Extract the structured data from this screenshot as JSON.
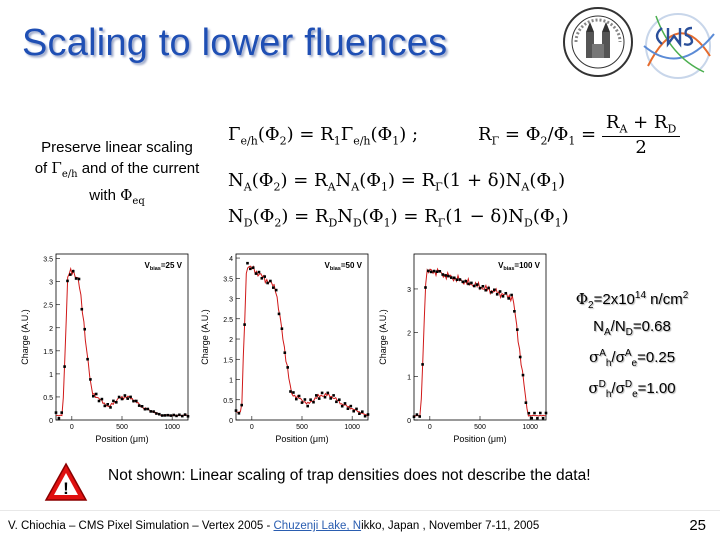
{
  "slide": {
    "title": "Scaling to lower fluences",
    "left_text": {
      "line1": "Preserve linear scaling",
      "line2_pre": "of ",
      "line2_sym": "Γ",
      "line2_sub": "e/h",
      "line2_post": " and of the current",
      "line3_pre": "with ",
      "line3_sym": "Φ",
      "line3_sub": "eq"
    },
    "equations": {
      "eq1_lhs": "Γ",
      "eq1_lhs_sub": "e/h",
      "eq1_arg": "(Φ",
      "eq1_arg_sub": "2",
      "eq1_rhs": ") = R",
      "eq1_r_sub": "1",
      "eq1_rhs2": "Γ",
      "eq1_rhs2_sub": "e/h",
      "eq1_rhs3": "(Φ",
      "eq1_rhs3_sub": "1",
      "eq1_end": ") ;",
      "eq2_lhs": "R",
      "eq2_lhs_sub": "Γ",
      "eq2_mid": " = Φ",
      "eq2_mid_sub": "2",
      "eq2_div": "/Φ",
      "eq2_div_sub": "1",
      "eq2_eq": " =",
      "eq2_num": "R",
      "eq2_num_sub_a": "A",
      "eq2_num_plus": " + R",
      "eq2_num_sub_d": "D",
      "eq2_den": "2",
      "eq3": "N",
      "eq3_sub": "A",
      "eq3_arg": "(Φ",
      "eq3_arg_sub": "2",
      "eq3_rhs": ") = R",
      "eq3_r_sub": "A",
      "eq3_rhs2": "N",
      "eq3_rhs2_sub": "A",
      "eq3_rhs3": "(Φ",
      "eq3_rhs3_sub": "1",
      "eq3_rhs4": ") = R",
      "eq3_rhs4_sub": "Γ",
      "eq3_rhs5": "(1 + δ)N",
      "eq3_rhs5_sub": "A",
      "eq3_rhs6": "(Φ",
      "eq3_rhs6_sub": "1",
      "eq3_end": ")",
      "eq4": "N",
      "eq4_sub": "D",
      "eq4_arg": "(Φ",
      "eq4_arg_sub": "2",
      "eq4_rhs": ") = R",
      "eq4_r_sub": "D",
      "eq4_rhs2": "N",
      "eq4_rhs2_sub": "D",
      "eq4_rhs3": "(Φ",
      "eq4_rhs3_sub": "1",
      "eq4_rhs4": ") = R",
      "eq4_rhs4_sub": "Γ",
      "eq4_rhs5": "(1 − δ)N",
      "eq4_rhs5_sub": "D",
      "eq4_rhs6": "(Φ",
      "eq4_rhs6_sub": "1",
      "eq4_end": ")"
    },
    "plots": [
      {
        "bias_label_pre": "V",
        "bias_label_sub": "bias",
        "bias_label_post": "=25 V",
        "ylabel": "Charge (A.U.)",
        "xlabel": "Position (μm)",
        "yticks": [
          "0",
          "0.5",
          "1",
          "1.5",
          "2",
          "2.5",
          "3",
          "3.5"
        ],
        "xticks": [
          "0",
          "500",
          "1000"
        ],
        "ymax": 3.6
      },
      {
        "bias_label_pre": "V",
        "bias_label_sub": "bias",
        "bias_label_post": "=50 V",
        "ylabel": "Charge (A.U.)",
        "xlabel": "Position (μm)",
        "yticks": [
          "0",
          "0.5",
          "1",
          "1.5",
          "2",
          "2.5",
          "3",
          "3.5",
          "4"
        ],
        "xticks": [
          "0",
          "500",
          "1000"
        ],
        "ymax": 4.1
      },
      {
        "bias_label_pre": "V",
        "bias_label_sub": "bias",
        "bias_label_post": "=100 V",
        "ylabel": "Charge (A.U.)",
        "xlabel": "Position (μm)",
        "yticks": [
          "0",
          "1",
          "2",
          "3"
        ],
        "xticks": [
          "0",
          "500",
          "1000"
        ],
        "ymax": 3.8
      }
    ],
    "info": {
      "l1_pre": "Φ",
      "l1_sub": "2",
      "l1_mid": "=2x10",
      "l1_sup": "14",
      "l1_post": " n/cm",
      "l1_sup2": "2",
      "l2_pre": "N",
      "l2_sub": "A",
      "l2_mid": "/N",
      "l2_sub2": "D",
      "l2_post": "=0.68",
      "l3_pre": "σ",
      "l3_sup": "A",
      "l3_sub": "h",
      "l3_mid": "/σ",
      "l3_sup2": "A",
      "l3_sub2": "e",
      "l3_post": "=0.25",
      "l4_pre": "σ",
      "l4_sup": "D",
      "l4_sub": "h",
      "l4_mid": "/σ",
      "l4_sup2": "D",
      "l4_sub2": "e",
      "l4_post": "=1.00"
    },
    "warning": {
      "symbol": "!",
      "text": "Not shown: Linear scaling of trap densities does not describe the data!"
    },
    "footer": {
      "pre": "V. Chiochia – CMS Pixel Simulation – Vertex 2005 - ",
      "link": "Chuzenji Lake, N",
      "post": "ikko, Japan , November 7-11, 2005"
    },
    "page_number": "25",
    "colors": {
      "title": "#1f4fb4",
      "sim_line": "#d01818",
      "data_dots": "#000000",
      "warn_fill": "#e01010"
    }
  }
}
